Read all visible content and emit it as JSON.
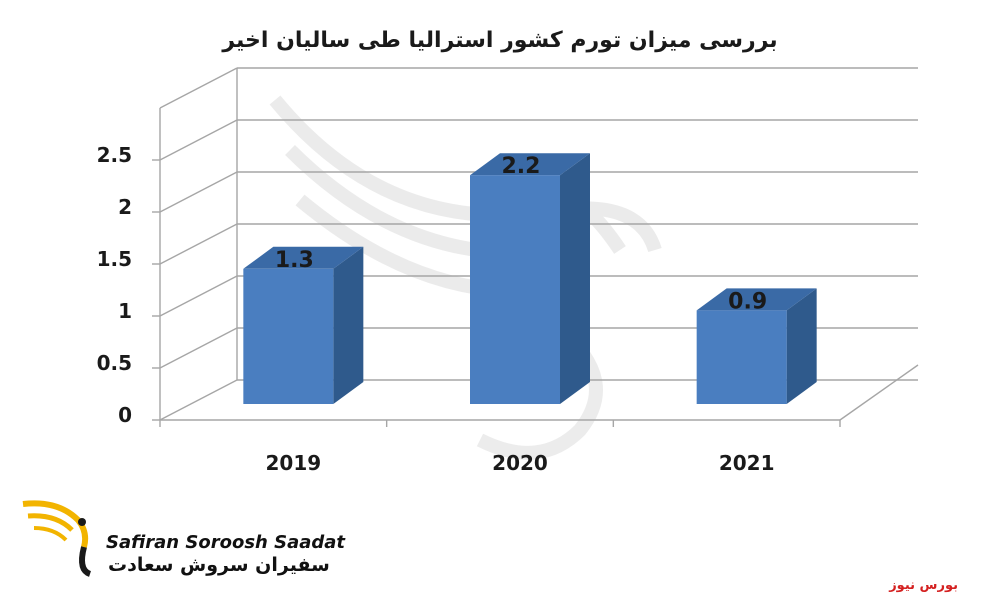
{
  "title": "بررسی میزان تورم کشور استرالیا طی سالیان اخیر",
  "chart_data": {
    "type": "bar",
    "style": "3d-column",
    "title": "بررسی میزان تورم کشور استرالیا طی سالیان اخیر",
    "categories": [
      "2019",
      "2020",
      "2021"
    ],
    "values": [
      1.3,
      2.2,
      0.9
    ],
    "data_labels": [
      "1.3",
      "2.2",
      "0.9"
    ],
    "ylim": [
      0,
      2.5
    ],
    "y_ticks": [
      "0",
      "0.5",
      "1",
      "1.5",
      "2",
      "2.5"
    ],
    "grid": true,
    "legend": "none",
    "bar_color": "#4a7ec0",
    "xlabel": "",
    "ylabel": ""
  },
  "logo": {
    "latin": "Safiran Soroosh Saadat",
    "persian": "سفیران سروش سعادت",
    "accent_color": "#f2b400"
  },
  "source": "بورس نیوز",
  "colors": {
    "bar_front": "#4a7ec0",
    "bar_side": "#2f5a8c",
    "bar_top": "#3a6aa6",
    "grid": "#a6a6a6",
    "source_red": "#d42020"
  }
}
